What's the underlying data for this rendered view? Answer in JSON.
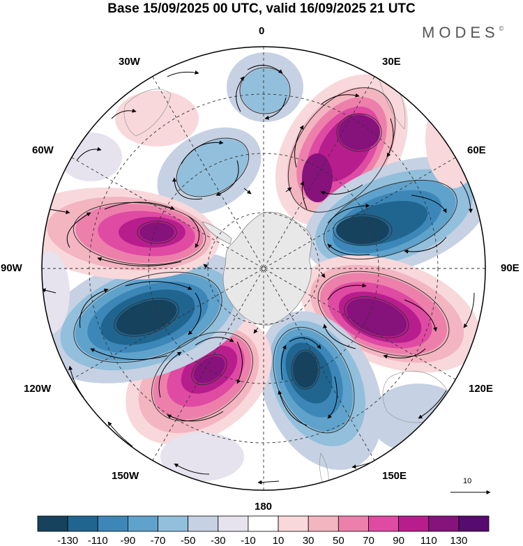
{
  "title": "Base 15/09/2025 00 UTC, valid 16/09/2025 21 UTC",
  "logo": {
    "text": "MODES",
    "mark": "©"
  },
  "map": {
    "projection": "south-polar-stereographic",
    "longitude_labels": {
      "top": "0",
      "top_left": "30W",
      "top_right": "30E",
      "upper_left": "60W",
      "upper_right": "60E",
      "left": "90W",
      "right": "90E",
      "lower_left": "120W",
      "lower_right": "120E",
      "bottom_left": "150W",
      "bottom_right": "150E",
      "bottom": "180"
    },
    "anomaly_centers": [
      {
        "lon": "10E",
        "sign": "negative",
        "value": -40
      },
      {
        "lon": "45W",
        "sign": "negative",
        "value": -60
      },
      {
        "lon": "40E",
        "sign": "positive",
        "value": 120
      },
      {
        "lon": "70E",
        "sign": "negative",
        "value": -130
      },
      {
        "lon": "100E",
        "sign": "positive",
        "value": 125
      },
      {
        "lon": "150E",
        "sign": "negative",
        "value": -120
      },
      {
        "lon": "155W",
        "sign": "positive",
        "value": 110
      },
      {
        "lon": "110W",
        "sign": "negative",
        "value": -130
      },
      {
        "lon": "75W",
        "sign": "positive",
        "value": 125
      },
      {
        "lon": "30W",
        "sign": "positive",
        "value": 20
      },
      {
        "lon": "170W",
        "sign": "negative",
        "value": -30
      }
    ]
  },
  "vector_reference": {
    "label": "10"
  },
  "colorbar": {
    "ticks": [
      "-130",
      "-110",
      "-90",
      "-70",
      "-50",
      "-30",
      "-10",
      "10",
      "30",
      "50",
      "70",
      "90",
      "110",
      "130"
    ],
    "colors": [
      "#16425e",
      "#1f6590",
      "#3c87b8",
      "#5fa2cc",
      "#92bfdc",
      "#c6d1e3",
      "#e6e2ee",
      "#ffffff",
      "#f8d8db",
      "#f3b5c0",
      "#ec80ab",
      "#df4aa3",
      "#b81d8d",
      "#86127c",
      "#560b6e"
    ]
  }
}
